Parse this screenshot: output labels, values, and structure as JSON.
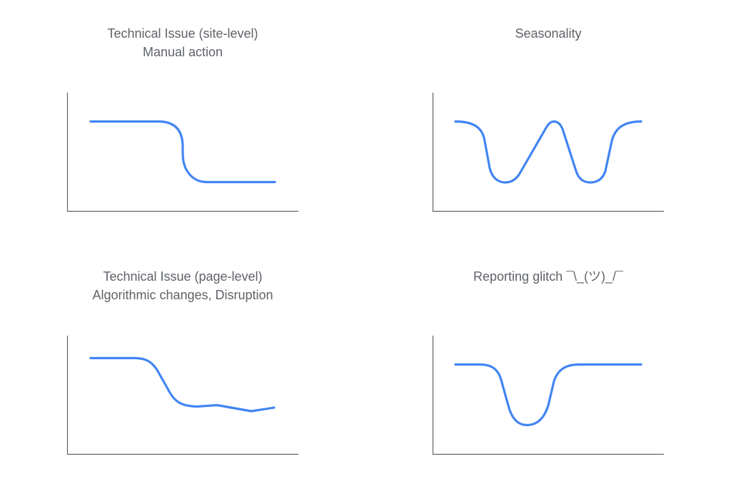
{
  "colors": {
    "curve": "#4285f4",
    "axis": "#5f6368",
    "text": "#5f6368",
    "background": "#ffffff"
  },
  "panels": [
    {
      "title_line1": "Technical Issue (site-level)",
      "title_line2": "Manual action",
      "pattern": "sudden-drop"
    },
    {
      "title_line1": "Seasonality",
      "title_line2": "",
      "pattern": "cyclical"
    },
    {
      "title_line1": "Technical Issue (page-level)",
      "title_line2": "Algorithmic changes, Disruption",
      "pattern": "gradual-decline"
    },
    {
      "title_line1": "Reporting glitch ¯\\_(ツ)_/¯",
      "title_line2": "",
      "pattern": "dip-and-recover"
    }
  ]
}
